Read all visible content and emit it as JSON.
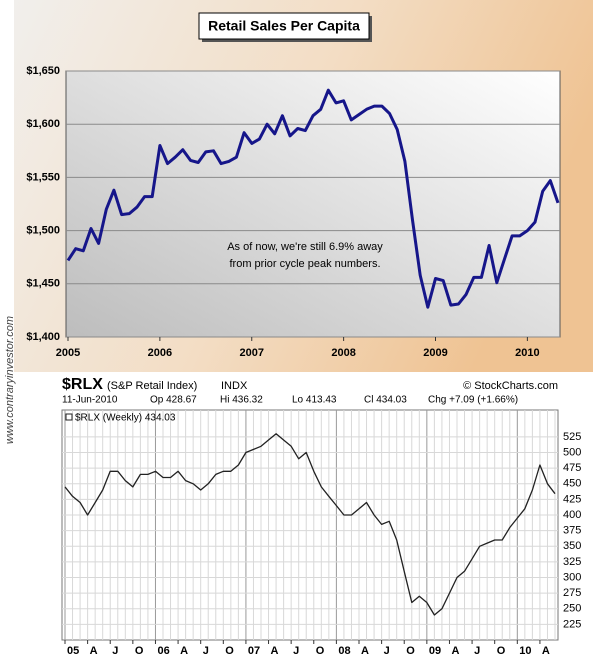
{
  "side_text": "www.contraryinvestor.com",
  "chart_data": [
    {
      "type": "line",
      "title": "Retail Sales Per Capita",
      "annotation": [
        "As of now, we're still 6.9% away",
        "from prior cycle peak numbers."
      ],
      "categories": [
        "2005",
        null,
        null,
        null,
        null,
        null,
        null,
        null,
        null,
        null,
        null,
        null,
        "2006",
        null,
        null,
        null,
        null,
        null,
        null,
        null,
        null,
        null,
        null,
        null,
        "2007",
        null,
        null,
        null,
        null,
        null,
        null,
        null,
        null,
        null,
        null,
        null,
        "2008",
        null,
        null,
        null,
        null,
        null,
        null,
        null,
        null,
        null,
        null,
        null,
        "2009",
        null,
        null,
        null,
        null,
        null,
        null,
        null,
        null,
        null,
        null,
        null,
        "2010",
        null,
        null,
        null,
        null
      ],
      "series": [
        {
          "color": "#16168a",
          "values": [
            1472,
            1483,
            1481,
            1502,
            1488,
            1520,
            1538,
            1515,
            1516,
            1522,
            1532,
            1532,
            1580,
            1563,
            1569,
            1576,
            1566,
            1564,
            1574,
            1575,
            1563,
            1565,
            1569,
            1592,
            1582,
            1586,
            1600,
            1591,
            1608,
            1589,
            1596,
            1594,
            1608,
            1614,
            1632,
            1620,
            1622,
            1604,
            1609,
            1614,
            1617,
            1617,
            1610,
            1595,
            1565,
            1510,
            1458,
            1428,
            1455,
            1453,
            1430,
            1431,
            1440,
            1456,
            1456,
            1486,
            1451,
            1473,
            1495,
            1495,
            1500,
            1508,
            1537,
            1547,
            1526
          ]
        }
      ],
      "ylim": [
        1400,
        1650
      ],
      "yticks": [
        {
          "value": 1400,
          "label": "$1,400"
        },
        {
          "value": 1450,
          "label": "$1,450"
        },
        {
          "value": 1500,
          "label": "$1,500"
        },
        {
          "value": 1550,
          "label": "$1,550"
        },
        {
          "value": 1600,
          "label": "$1,600"
        },
        {
          "value": 1650,
          "label": "$1,650"
        }
      ],
      "grid": true
    },
    {
      "type": "line",
      "title": "$RLX",
      "subtitle": "(S&P Retail Index)",
      "exchange": "INDX",
      "source": "© StockCharts.com",
      "date": "11-Jun-2010",
      "stats": [
        "Op 428.67",
        "Hi 436.32",
        "Lo 413.43",
        "Cl 434.03",
        "Chg +7.09 (+1.66%)"
      ],
      "categories": [
        "05",
        null,
        null,
        "A",
        null,
        null,
        "J",
        null,
        null,
        "O",
        null,
        null,
        "06",
        null,
        null,
        "A",
        null,
        null,
        "J",
        null,
        null,
        "O",
        null,
        null,
        "07",
        null,
        null,
        "A",
        null,
        null,
        "J",
        null,
        null,
        "O",
        null,
        null,
        "08",
        null,
        null,
        "A",
        null,
        null,
        "J",
        null,
        null,
        "O",
        null,
        null,
        "09",
        null,
        null,
        "A",
        null,
        null,
        "J",
        null,
        null,
        "O",
        null,
        null,
        "10",
        null,
        null,
        "A",
        null,
        null
      ],
      "series": [
        {
          "name": "$RLX (Weekly) 434.03",
          "color": "#222222",
          "values": [
            445,
            430,
            420,
            400,
            420,
            440,
            470,
            470,
            455,
            445,
            465,
            465,
            470,
            460,
            460,
            470,
            455,
            450,
            440,
            450,
            465,
            470,
            470,
            480,
            500,
            505,
            510,
            520,
            530,
            520,
            510,
            490,
            500,
            470,
            445,
            430,
            415,
            400,
            400,
            410,
            420,
            400,
            385,
            390,
            360,
            310,
            260,
            270,
            260,
            240,
            250,
            275,
            300,
            310,
            330,
            350,
            355,
            360,
            360,
            380,
            395,
            410,
            440,
            480,
            450,
            434.03
          ]
        }
      ],
      "ylim": [
        200,
        568
      ],
      "yticks": [
        225,
        250,
        275,
        300,
        325,
        350,
        375,
        400,
        425,
        450,
        475,
        500,
        525
      ],
      "grid": true,
      "xgrid": true
    }
  ]
}
